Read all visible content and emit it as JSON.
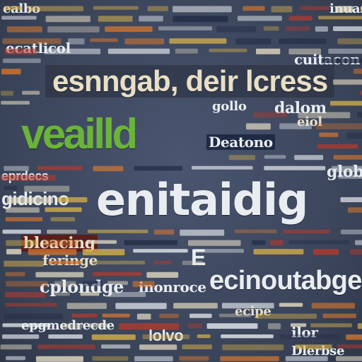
{
  "palette": {
    "background": "#3f4a60",
    "white": "#e9edf2",
    "cream": "#e8dfc6",
    "gold": "#d9b24a",
    "orange": "#d9772d",
    "red": "#b9392c",
    "green": "#6bb33a",
    "navy_box": "#1f2a44",
    "dark_red_box": "#5a1e1c"
  },
  "words": [
    {
      "text": "esnngab, deir lcress",
      "box": true
    },
    {
      "text": "enitaidig"
    },
    {
      "text": "ecinoutabge"
    },
    {
      "text": "veailld"
    },
    {
      "text": "Deatono"
    },
    {
      "text": "gidicino"
    },
    {
      "text": "bleacing"
    },
    {
      "text": "cplondge"
    },
    {
      "text": "inonroce"
    },
    {
      "text": "feringe"
    },
    {
      "text": "eprdecs"
    },
    {
      "text": "epgmedrecde"
    },
    {
      "text": "ecatlicol"
    },
    {
      "text": "cuitacon"
    },
    {
      "text": "glob"
    },
    {
      "text": "dalom"
    },
    {
      "text": "eiol"
    },
    {
      "text": "lolvo"
    },
    {
      "text": "Dlerbse"
    },
    {
      "text": "inuasi"
    },
    {
      "text": "E"
    },
    {
      "text": "gollo"
    },
    {
      "text": "ilor"
    },
    {
      "text": "ecipe"
    },
    {
      "text": "ealbo"
    }
  ]
}
